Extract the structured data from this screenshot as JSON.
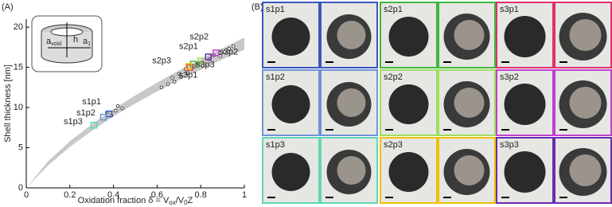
{
  "chart_data": {
    "type": "scatter",
    "panel_label": "(A)",
    "x_label": {
      "parts": [
        "Oxidation fraction δ = V",
        "ox",
        "/V",
        "0",
        "Z"
      ],
      "subscript": [
        false,
        true,
        false,
        true,
        false
      ]
    },
    "y_label": "Shell thickness [nm]",
    "xlim": [
      0,
      1
    ],
    "xticks": [
      0,
      0.2,
      0.4,
      0.6,
      0.8,
      1
    ],
    "ylim": [
      0,
      21
    ],
    "yticks": [
      0,
      5,
      10,
      15,
      20
    ],
    "band": {
      "color": "#c8c8c8",
      "x": [
        0,
        0.1,
        0.2,
        0.3,
        0.4,
        0.5,
        0.6,
        0.7,
        0.8,
        0.9,
        1
      ],
      "upper": [
        0,
        3.3,
        5.8,
        7.9,
        9.8,
        11.5,
        13.1,
        14.6,
        16.0,
        17.4,
        18.7
      ],
      "lower": [
        0,
        2.8,
        5.1,
        7.1,
        8.9,
        10.5,
        12.0,
        13.4,
        14.7,
        16.0,
        17.2
      ]
    },
    "background_points": {
      "x": [
        0.37,
        0.39,
        0.41,
        0.42,
        0.44,
        0.62,
        0.65,
        0.67,
        0.68,
        0.7,
        0.71,
        0.73,
        0.74,
        0.77,
        0.79,
        0.81,
        0.84,
        0.86,
        0.89,
        0.91,
        0.93,
        0.95
      ],
      "values": [
        9.4,
        9.0,
        9.6,
        10.2,
        9.9,
        12.5,
        12.9,
        13.7,
        13.2,
        14.2,
        13.8,
        14.8,
        14.3,
        15.1,
        15.5,
        15.2,
        16.0,
        16.5,
        16.4,
        16.9,
        17.3,
        17.6
      ]
    },
    "series": [
      {
        "name": "s1p1",
        "color": "#3a56c0",
        "x": [
          0.38
        ],
        "values": [
          9.2
        ]
      },
      {
        "name": "s2p1",
        "color": "#3fb83a",
        "x": [
          0.766
        ],
        "values": [
          15.4
        ]
      },
      {
        "name": "s3p1",
        "color": "#e0306a",
        "x": [
          0.75
        ],
        "values": [
          15.0
        ]
      },
      {
        "name": "s1p2",
        "color": "#6f93d6",
        "x": [
          0.354
        ],
        "values": [
          8.8
        ]
      },
      {
        "name": "s2p2",
        "color": "#9fdc5e",
        "x": [
          0.8
        ],
        "values": [
          15.8
        ]
      },
      {
        "name": "s3p2",
        "color": "#c03fd0",
        "x": [
          0.87
        ],
        "values": [
          16.8
        ]
      },
      {
        "name": "s1p3",
        "color": "#5fd6b8",
        "x": [
          0.31
        ],
        "values": [
          7.8
        ]
      },
      {
        "name": "s2p3",
        "color": "#f0c000",
        "x": [
          0.745
        ],
        "values": [
          15.1
        ]
      },
      {
        "name": "s3p3",
        "color": "#6a2db0",
        "x": [
          0.835
        ],
        "values": [
          16.3
        ]
      }
    ],
    "inset_labels": [
      {
        "base": "a",
        "sub": "void"
      },
      {
        "base": "h",
        "sub": ""
      },
      {
        "base": "a",
        "sub": "1"
      }
    ]
  },
  "panel_b": {
    "panel_label": "(B)"
  }
}
